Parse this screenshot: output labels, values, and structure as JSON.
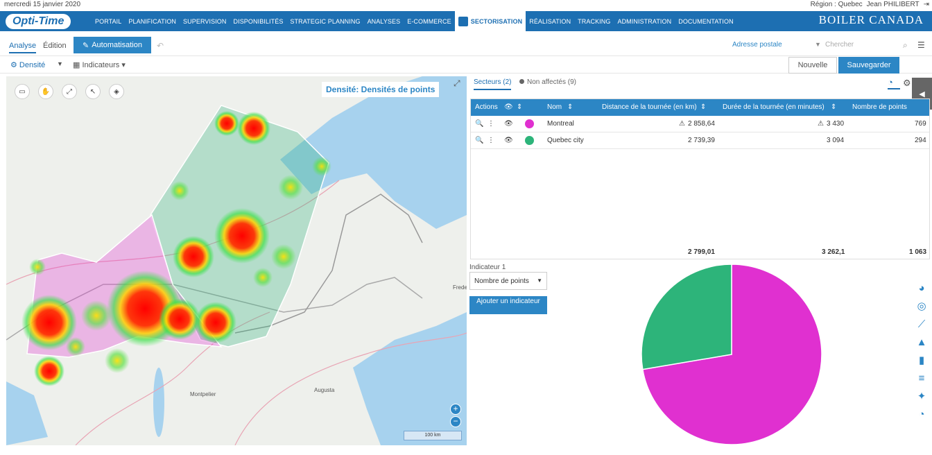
{
  "topbar": {
    "date": "mercredi 15 janvier 2020",
    "region": "Région : Quebec",
    "user": "Jean PHILIBERT"
  },
  "nav": {
    "logo": "Opti-Time",
    "brand": "BOILER CANADA",
    "items": [
      "PORTAIL",
      "PLANIFICATION",
      "SUPERVISION",
      "DISPONIBILITÉS",
      "STRATEGIC PLANNING",
      "ANALYSES",
      "E-COMMERCE",
      "SECTORISATION",
      "RÉALISATION",
      "TRACKING",
      "ADMINISTRATION",
      "DOCUMENTATION"
    ],
    "active": "SECTORISATION"
  },
  "toolbar": {
    "tab_analyse": "Analyse",
    "tab_edition": "Édition",
    "automatisation": "Automatisation",
    "address_mode": "Adresse postale",
    "search_placeholder": "Chercher",
    "density": "Densité",
    "indicators": "Indicateurs",
    "new": "Nouvelle",
    "save": "Sauvegarder"
  },
  "map": {
    "title": "Densité: Densités de points",
    "scale": "100 km",
    "labels": [
      "Montpelier",
      "Augusta",
      "Frede"
    ]
  },
  "panel": {
    "tab_sectors": "Secteurs (2)",
    "tab_unassigned": "Non affectés (9)",
    "columns": [
      "Actions",
      "Nom",
      "Distance de la tournée (en km)",
      "Durée de la tournée (en minutes)",
      "Nombre de points"
    ],
    "rows": [
      {
        "name": "Montreal",
        "distance": "2 858,64",
        "duration": "3 430",
        "points": "769",
        "color": "#e030d0"
      },
      {
        "name": "Quebec city",
        "distance": "2 739,39",
        "duration": "3 094",
        "points": "294",
        "color": "#2db47a"
      }
    ],
    "totals": {
      "distance": "2 799,01",
      "duration": "3 262,1",
      "points": "1 063"
    }
  },
  "indicator": {
    "label": "Indicateur 1",
    "selected": "Nombre de points",
    "add": "Ajouter un indicateur"
  },
  "chart_data": {
    "type": "pie",
    "categories": [
      "Montreal",
      "Quebec city"
    ],
    "values": [
      769,
      294
    ],
    "colors": [
      "#e030d0",
      "#2db47a"
    ]
  }
}
